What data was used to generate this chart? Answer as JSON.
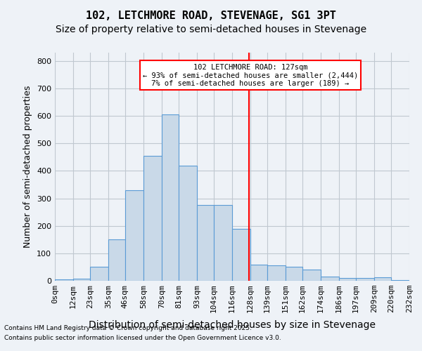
{
  "title": "102, LETCHMORE ROAD, STEVENAGE, SG1 3PT",
  "subtitle": "Size of property relative to semi-detached houses in Stevenage",
  "xlabel": "Distribution of semi-detached houses by size in Stevenage",
  "ylabel": "Number of semi-detached properties",
  "bar_values": [
    5,
    8,
    52,
    150,
    330,
    455,
    605,
    420,
    275,
    275,
    190,
    60,
    55,
    50,
    40,
    15,
    10,
    10,
    12,
    3
  ],
  "tick_labels": [
    "0sqm",
    "12sqm",
    "23sqm",
    "35sqm",
    "46sqm",
    "58sqm",
    "70sqm",
    "81sqm",
    "93sqm",
    "104sqm",
    "116sqm",
    "128sqm",
    "139sqm",
    "151sqm",
    "162sqm",
    "174sqm",
    "186sqm",
    "197sqm",
    "209sqm",
    "220sqm",
    "232sqm"
  ],
  "bar_color": "#c9d9e8",
  "bar_edge_color": "#5b9bd5",
  "grid_color": "#c0c8d0",
  "background_color": "#eef2f7",
  "annotation_text": "102 LETCHMORE ROAD: 127sqm\n← 93% of semi-detached houses are smaller (2,444)\n7% of semi-detached houses are larger (189) →",
  "vline_x": 127,
  "bin_edges": [
    0,
    12,
    23,
    35,
    46,
    58,
    70,
    81,
    93,
    104,
    116,
    128,
    139,
    151,
    162,
    174,
    186,
    197,
    209,
    220,
    232
  ],
  "ylim": [
    0,
    830
  ],
  "yticks": [
    0,
    100,
    200,
    300,
    400,
    500,
    600,
    700,
    800
  ],
  "footnote1": "Contains HM Land Registry data © Crown copyright and database right 2025.",
  "footnote2": "Contains public sector information licensed under the Open Government Licence v3.0.",
  "title_fontsize": 11,
  "subtitle_fontsize": 10,
  "axis_fontsize": 9,
  "tick_fontsize": 8
}
